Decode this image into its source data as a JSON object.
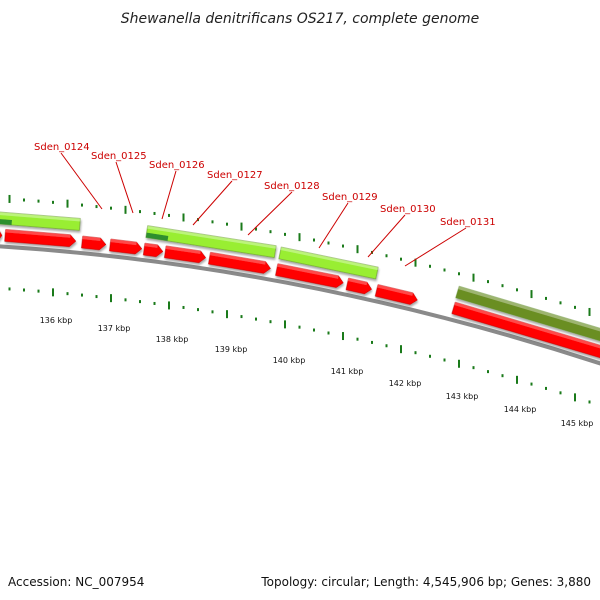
{
  "title": "Shewanella denitrificans OS217, complete genome",
  "accession": "Accession: NC_007954",
  "summary": "Topology: circular; Length: 4,545,906 bp; Genes: 3,880",
  "gene_labels": [
    "Sden_0124",
    "Sden_0125",
    "Sden_0126",
    "Sden_0127",
    "Sden_0128",
    "Sden_0129",
    "Sden_0130",
    "Sden_0131"
  ],
  "kbp_labels": [
    "136 kbp",
    "137 kbp",
    "138 kbp",
    "139 kbp",
    "140 kbp",
    "141 kbp",
    "142 kbp",
    "143 kbp",
    "144 kbp",
    "145 kbp"
  ],
  "colors": {
    "cds": "#ff0000",
    "gene_light": "#99ee33",
    "gene_dark": "#2f8f2f",
    "gene_olive": "#6b8e23",
    "backbone": "#888888",
    "tick": "#1a7a1a",
    "label": "#cc0000"
  }
}
